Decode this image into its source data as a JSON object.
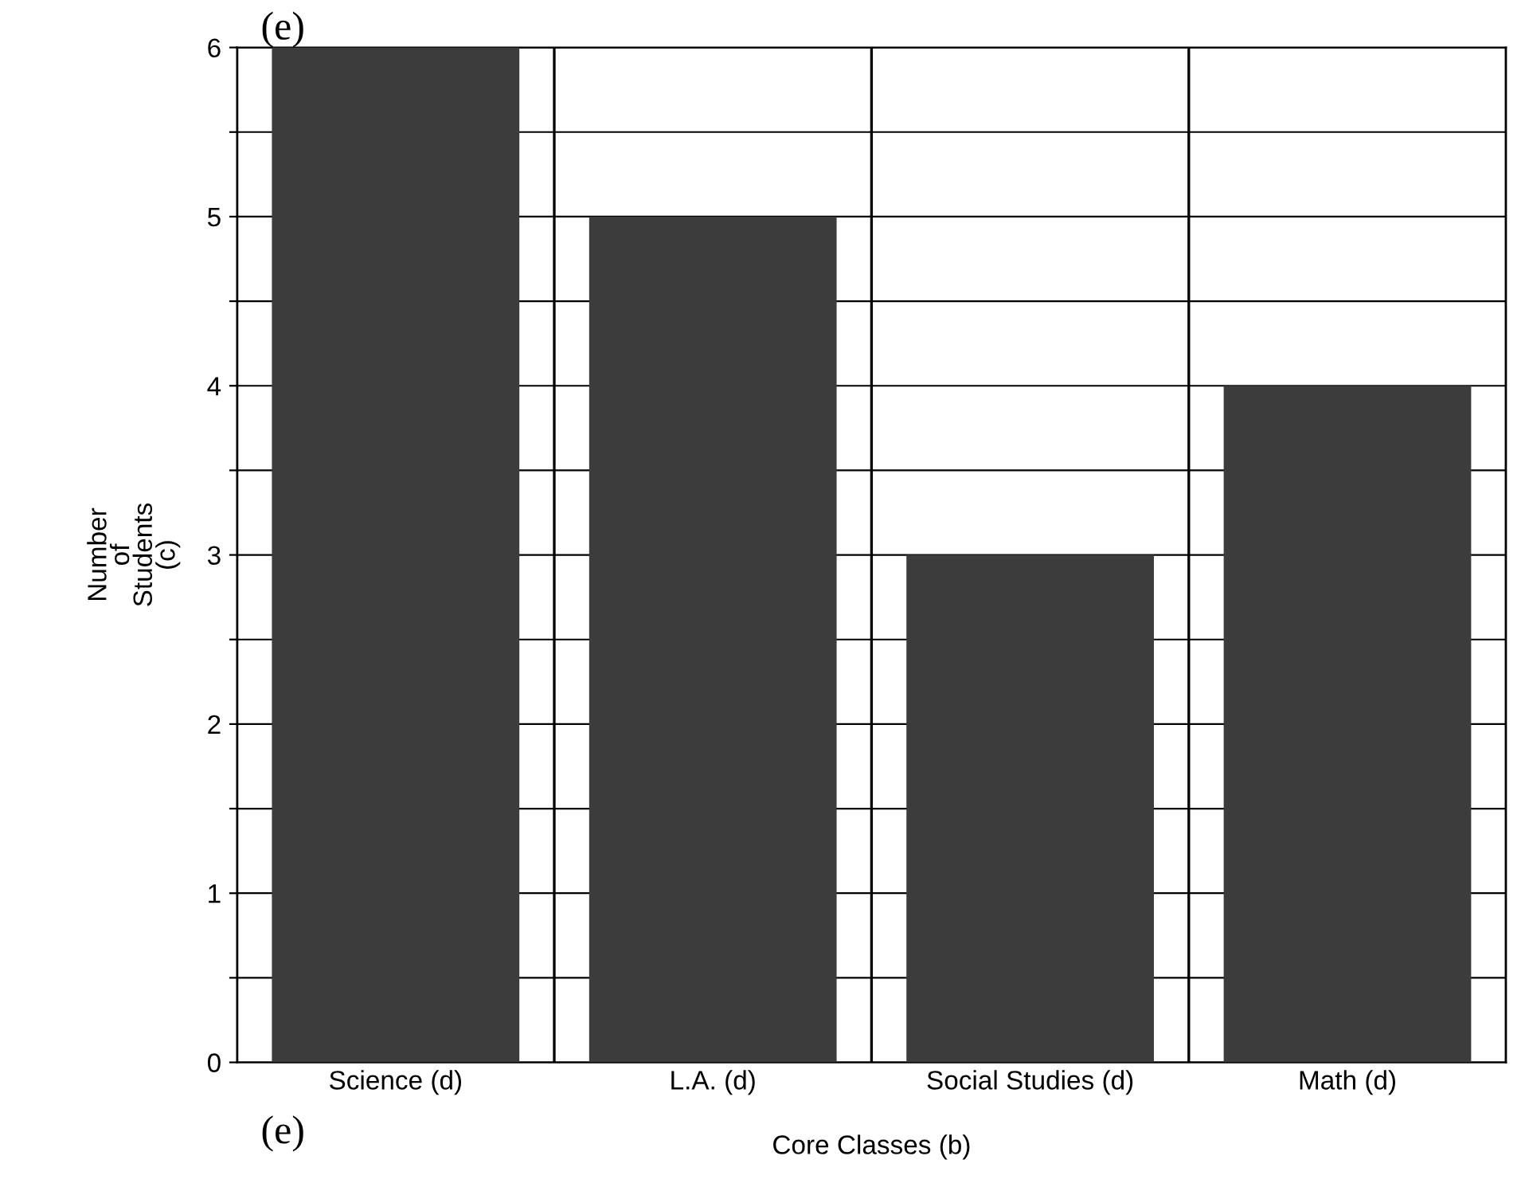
{
  "chart_data": {
    "type": "bar",
    "categories": [
      "Science (d)",
      "L.A. (d)",
      "Social Studies (d)",
      "Math (d)"
    ],
    "values": [
      6,
      5,
      3,
      4
    ],
    "color": "#3c3c3c",
    "xlabel": "Core Classes (b)",
    "ylabel": "Number\nof\nStudents\n(c)",
    "ylim": [
      0,
      6
    ],
    "yticks": [
      0,
      {
        "value": 0.5,
        "label": null
      },
      1,
      {
        "value": 1.5,
        "label": null
      },
      2,
      {
        "value": 2.5,
        "label": null
      },
      3,
      {
        "value": 3.5,
        "label": null
      },
      4,
      {
        "value": 4.5,
        "label": null
      },
      5,
      {
        "value": 5.5,
        "label": null
      },
      6
    ],
    "grid": true,
    "annotations": [
      "(e)",
      "(e)"
    ]
  }
}
